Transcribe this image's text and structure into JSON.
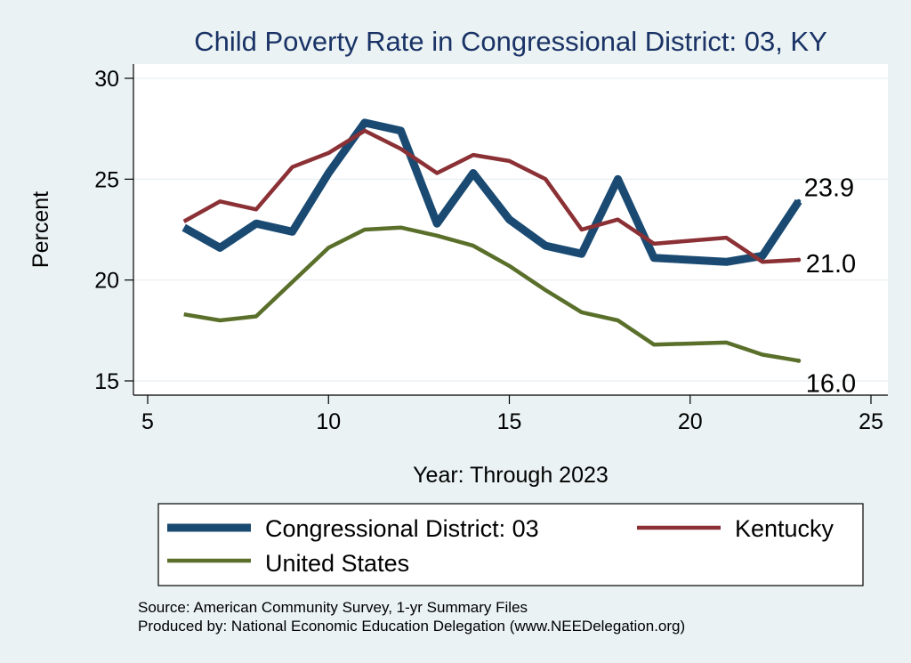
{
  "chart_data": {
    "type": "line",
    "title": "Child Poverty Rate in Congressional District:  03, KY",
    "xlabel": "Year: Through 2023",
    "ylabel": "Percent",
    "xlim": [
      5,
      25
    ],
    "ylim": [
      15,
      30
    ],
    "xticks": [
      5,
      10,
      15,
      20,
      25
    ],
    "yticks": [
      15,
      20,
      25,
      30
    ],
    "grid": true,
    "legend_position": "bottom",
    "series": [
      {
        "name": "Congressional District:  03",
        "color": "#1a4a72",
        "x": [
          6,
          7,
          8,
          9,
          10,
          11,
          12,
          13,
          14,
          15,
          16,
          17,
          18,
          19,
          21,
          22,
          23
        ],
        "values": [
          22.6,
          21.6,
          22.8,
          22.4,
          25.3,
          27.8,
          27.4,
          22.8,
          25.3,
          23.0,
          21.7,
          21.3,
          25.0,
          21.1,
          20.9,
          21.2,
          23.9
        ],
        "end_label": "23.9"
      },
      {
        "name": "Kentucky",
        "color": "#8b3136",
        "x": [
          6,
          7,
          8,
          9,
          10,
          11,
          12,
          13,
          14,
          15,
          16,
          17,
          18,
          19,
          21,
          22,
          23
        ],
        "values": [
          22.9,
          23.9,
          23.5,
          25.6,
          26.3,
          27.4,
          26.5,
          25.3,
          26.2,
          25.9,
          25.0,
          22.5,
          23.0,
          21.8,
          22.1,
          20.9,
          21.0
        ],
        "end_label": "21.0"
      },
      {
        "name": "United States",
        "color": "#596f2a",
        "x": [
          6,
          7,
          8,
          9,
          10,
          11,
          12,
          13,
          14,
          15,
          16,
          17,
          18,
          19,
          21,
          22,
          23
        ],
        "values": [
          18.3,
          18.0,
          18.2,
          19.9,
          21.6,
          22.5,
          22.6,
          22.2,
          21.7,
          20.7,
          19.5,
          18.4,
          18.0,
          16.8,
          16.9,
          16.3,
          16.0
        ],
        "end_label": "16.0"
      }
    ]
  },
  "footer": {
    "source": "Source: American Community Survey, 1-yr Summary Files",
    "produced": "Produced by: National Economic Education Delegation (www.NEEDelegation.org)"
  }
}
